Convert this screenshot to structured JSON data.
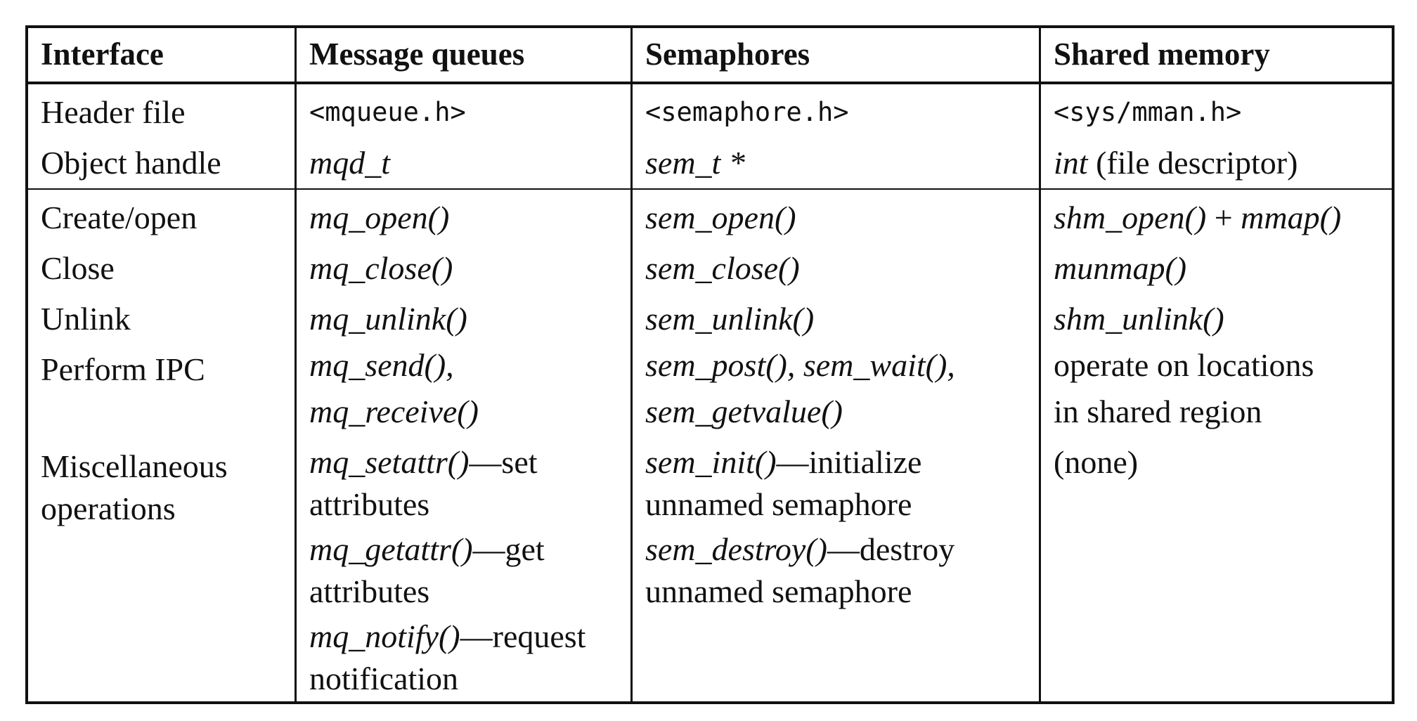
{
  "headers": [
    "Interface",
    "Message queues",
    "Semaphores",
    "Shared memory"
  ],
  "row_labels": {
    "header_file": "Header file",
    "object_handle": "Object handle",
    "create_open": "Create/open",
    "close": "Close",
    "unlink": "Unlink",
    "perform_ipc": "Perform IPC",
    "misc_1": "Miscellaneous",
    "misc_2": "operations"
  },
  "mq": {
    "header_file": "<mqueue.h>",
    "object_handle": "mqd_t",
    "create_open": "mq_open()",
    "close": "mq_close()",
    "unlink": "mq_unlink()",
    "ipc_1": "mq_send(),",
    "ipc_2": "mq_receive()",
    "misc_1_fn": "mq_setattr()",
    "misc_1_text": "—set",
    "misc_1_cont": "attributes",
    "misc_2_fn": "mq_getattr()",
    "misc_2_text": "—get",
    "misc_2_cont": "attributes",
    "misc_3_fn": "mq_notify()",
    "misc_3_text": "—request",
    "misc_3_cont": "notification"
  },
  "sem": {
    "header_file": "<semaphore.h>",
    "object_handle": "sem_t *",
    "create_open": "sem_open()",
    "close": "sem_close()",
    "unlink": "sem_unlink()",
    "ipc_1": "sem_post(), sem_wait(),",
    "ipc_2": "sem_getvalue()",
    "misc_1_fn": "sem_init()",
    "misc_1_text": "—initialize",
    "misc_1_cont": "unnamed semaphore",
    "misc_2_fn": "sem_destroy()",
    "misc_2_text": "—destroy",
    "misc_2_cont": "unnamed semaphore"
  },
  "shm": {
    "header_file": "<sys/mman.h>",
    "object_handle_it": "int",
    "object_handle_text": " (file descriptor)",
    "create_open_1": "shm_open()",
    "create_open_plus": " + ",
    "create_open_2": "mmap()",
    "close": "munmap()",
    "unlink": "shm_unlink()",
    "ipc_1": "operate on locations",
    "ipc_2": "in shared region",
    "misc": "(none)"
  }
}
